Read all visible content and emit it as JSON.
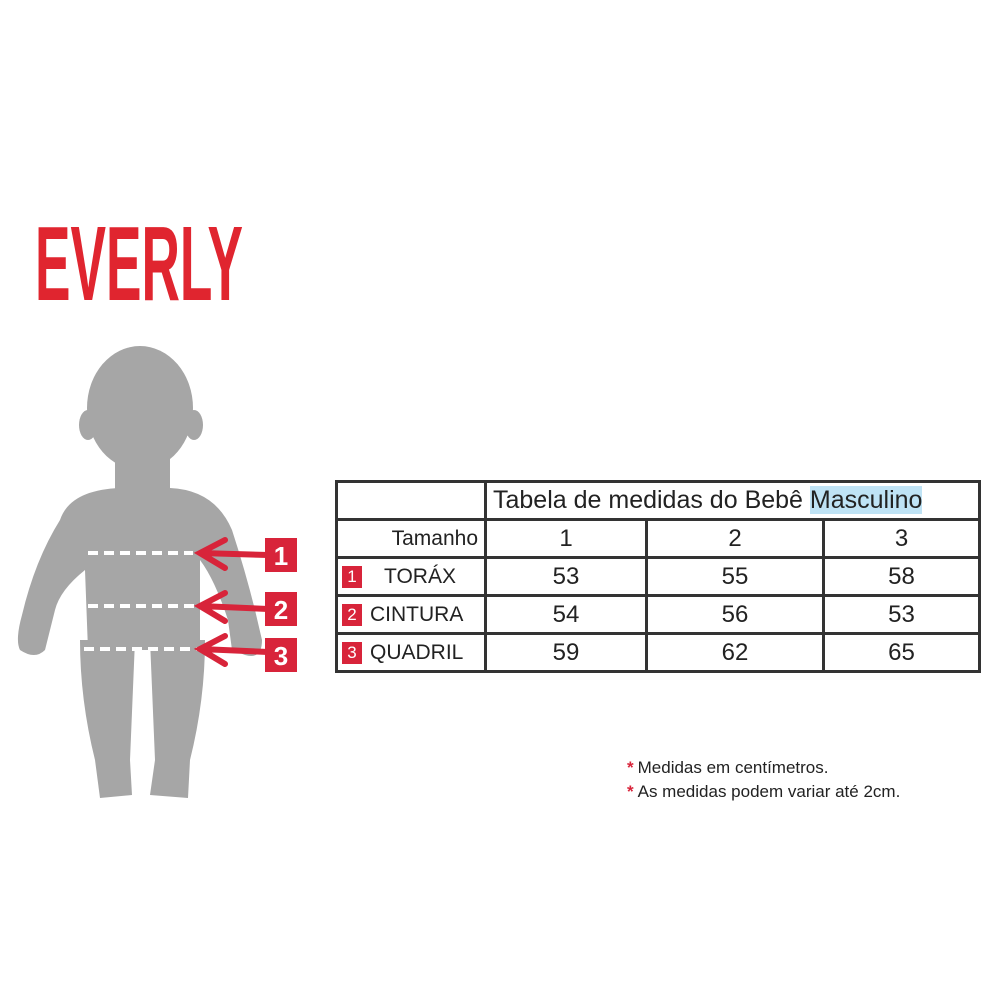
{
  "brand": {
    "logo_text": "EVERLY",
    "color": "#e0252f"
  },
  "figure": {
    "icon": "baby-silhouette",
    "markers": [
      "1",
      "2",
      "3"
    ],
    "marker_color": "#d8243a"
  },
  "table": {
    "title_prefix": "Tabela de medidas do Bebê",
    "title_highlight": "Masculino",
    "size_label": "Tamanho",
    "sizes": [
      "1",
      "2",
      "3"
    ],
    "rows": [
      {
        "num": "1",
        "label": "TORÁX",
        "values": [
          "53",
          "55",
          "58"
        ]
      },
      {
        "num": "2",
        "label": "CINTURA",
        "values": [
          "54",
          "56",
          "53"
        ]
      },
      {
        "num": "3",
        "label": "QUADRIL",
        "values": [
          "59",
          "62",
          "65"
        ]
      }
    ]
  },
  "notes": [
    "Medidas em centímetros.",
    "As medidas podem variar até 2cm."
  ]
}
